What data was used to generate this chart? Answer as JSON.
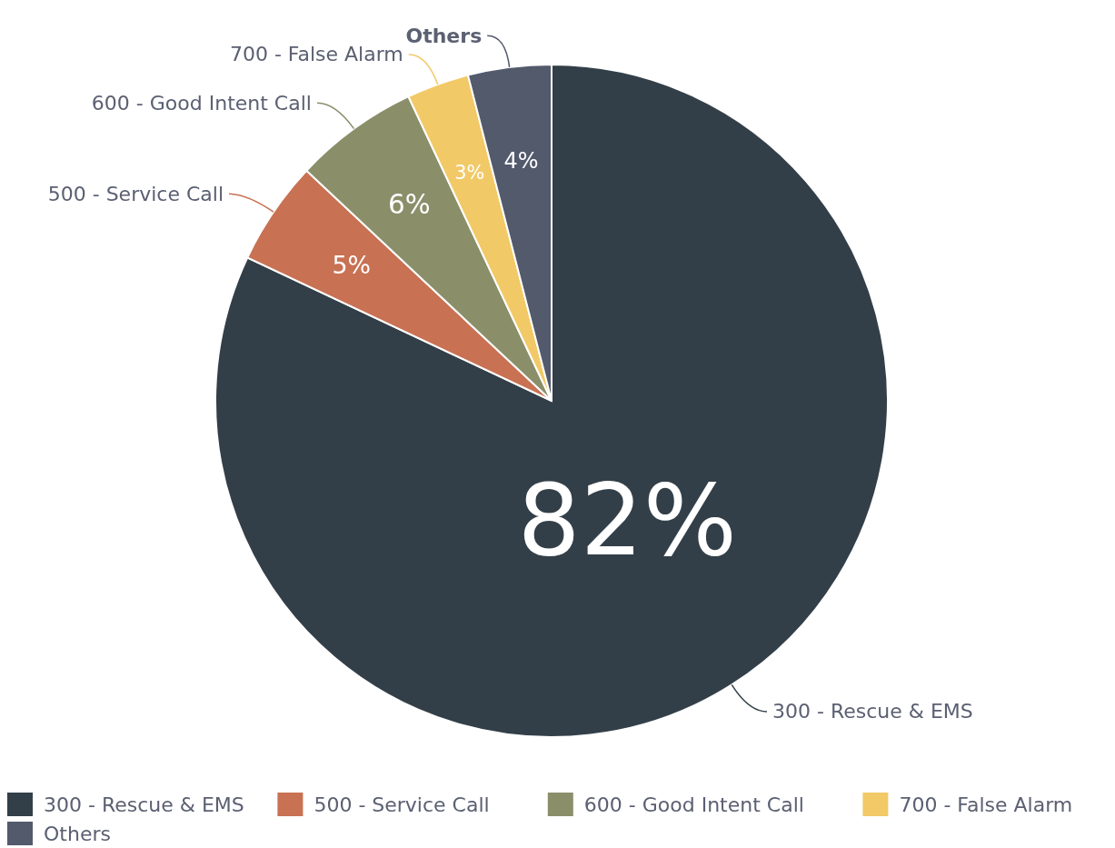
{
  "chart_data": {
    "type": "pie",
    "categories": [
      "300 - Rescue & EMS",
      "500 - Service Call",
      "600 - Good Intent Call",
      "700 - False Alarm",
      "Others"
    ],
    "values": [
      82,
      5,
      6,
      3,
      4
    ],
    "colors": [
      "#333f48",
      "#c87153",
      "#8a8f6a",
      "#f2c967",
      "#525a6c"
    ],
    "value_labels": [
      "82%",
      "5%",
      "6%",
      "3%",
      "4%"
    ],
    "legend": "bottom"
  }
}
